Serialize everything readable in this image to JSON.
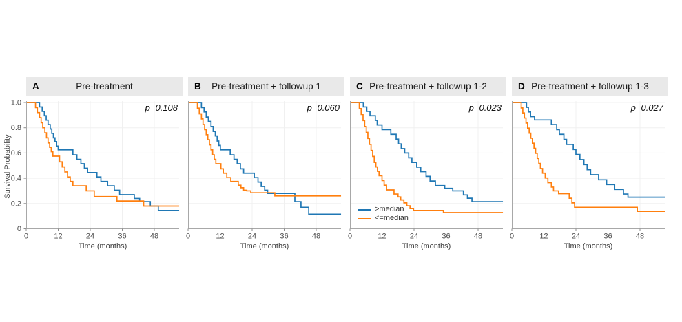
{
  "figure": {
    "y_axis_label": "Survival Probability",
    "x_axis_label": "Time (months)",
    "x_ticks": [
      0,
      12,
      24,
      36,
      48
    ],
    "y_ticks": [
      "1.0",
      "0.8",
      "0.6",
      "0.4",
      "0.2",
      "0"
    ],
    "x_max": 57.3,
    "colors": {
      "above_median": "#1f77b4",
      "below_median": "#ff7f0e",
      "strip_bg": "#e9e9e9",
      "grid": "#f0f0f0",
      "spine": "#a8a8a8",
      "tick": "#8c8c8c",
      "tick_text": "#4d4d4d"
    },
    "legend": {
      "items": [
        {
          "label": ">median",
          "color_key": "above_median"
        },
        {
          "label": "<=median",
          "color_key": "below_median"
        }
      ]
    },
    "panels": [
      {
        "letter": "A",
        "title": "Pre-treatment",
        "p_value": "p=0.108"
      },
      {
        "letter": "B",
        "title": "Pre-treatment + followup 1",
        "p_value": "p=0.060"
      },
      {
        "letter": "C",
        "title": "Pre-treatment + followup 1-2",
        "p_value": "p=0.023"
      },
      {
        "letter": "D",
        "title": "Pre-treatment + followup 1-3",
        "p_value": "p=0.027"
      }
    ]
  },
  "chart_data": [
    {
      "type": "line",
      "subtype": "kaplan-meier-step",
      "panel": "A",
      "title": "Pre-treatment",
      "p_value": "p=0.108",
      "xlabel": "Time (months)",
      "ylabel": "Survival Probability",
      "xlim": [
        0,
        57.3
      ],
      "ylim": [
        0,
        1.0
      ],
      "x_ticks": [
        0,
        12,
        24,
        36,
        48
      ],
      "grid": true,
      "legend_position": "none",
      "series": [
        {
          "name": ">median",
          "color_key": "above_median",
          "start_survival": 1.0,
          "steps": [
            [
              5,
              0.965
            ],
            [
              6,
              0.93
            ],
            [
              6.8,
              0.895
            ],
            [
              7.5,
              0.86
            ],
            [
              8.2,
              0.825
            ],
            [
              9,
              0.79
            ],
            [
              9.6,
              0.755
            ],
            [
              10.2,
              0.72
            ],
            [
              10.8,
              0.69
            ],
            [
              11.4,
              0.655
            ],
            [
              12,
              0.625
            ],
            [
              17.5,
              0.585
            ],
            [
              19,
              0.55
            ],
            [
              20.5,
              0.515
            ],
            [
              21.8,
              0.48
            ],
            [
              23,
              0.445
            ],
            [
              26.5,
              0.41
            ],
            [
              28,
              0.375
            ],
            [
              30.5,
              0.34
            ],
            [
              33,
              0.305
            ],
            [
              35,
              0.27
            ],
            [
              40.5,
              0.24
            ],
            [
              42.5,
              0.215
            ],
            [
              46.5,
              0.18
            ],
            [
              49.5,
              0.145
            ]
          ]
        },
        {
          "name": "<=median",
          "color_key": "below_median",
          "start_survival": 1.0,
          "steps": [
            [
              3.5,
              0.96
            ],
            [
              4.2,
              0.92
            ],
            [
              5,
              0.88
            ],
            [
              5.6,
              0.84
            ],
            [
              6.2,
              0.8
            ],
            [
              7,
              0.76
            ],
            [
              7.6,
              0.72
            ],
            [
              8.2,
              0.68
            ],
            [
              8.8,
              0.645
            ],
            [
              9.4,
              0.61
            ],
            [
              10,
              0.575
            ],
            [
              12.5,
              0.53
            ],
            [
              13.5,
              0.49
            ],
            [
              14.5,
              0.45
            ],
            [
              15.5,
              0.41
            ],
            [
              16.5,
              0.375
            ],
            [
              17.5,
              0.34
            ],
            [
              22.5,
              0.3
            ],
            [
              25.5,
              0.255
            ],
            [
              34,
              0.22
            ],
            [
              44,
              0.18
            ]
          ]
        }
      ]
    },
    {
      "type": "line",
      "subtype": "kaplan-meier-step",
      "panel": "B",
      "title": "Pre-treatment + followup 1",
      "p_value": "p=0.060",
      "xlabel": "Time (months)",
      "ylabel": "Survival Probability",
      "xlim": [
        0,
        57.3
      ],
      "ylim": [
        0,
        1.0
      ],
      "x_ticks": [
        0,
        12,
        24,
        36,
        48
      ],
      "grid": true,
      "legend_position": "none",
      "series": [
        {
          "name": ">median",
          "color_key": "above_median",
          "start_survival": 1.0,
          "steps": [
            [
              5,
              0.96
            ],
            [
              6,
              0.925
            ],
            [
              6.8,
              0.885
            ],
            [
              7.6,
              0.85
            ],
            [
              8.6,
              0.81
            ],
            [
              9.4,
              0.77
            ],
            [
              10.2,
              0.735
            ],
            [
              10.9,
              0.695
            ],
            [
              11.5,
              0.66
            ],
            [
              12.1,
              0.625
            ],
            [
              15.8,
              0.585
            ],
            [
              17.2,
              0.55
            ],
            [
              18.4,
              0.515
            ],
            [
              19.6,
              0.475
            ],
            [
              20.8,
              0.44
            ],
            [
              24.8,
              0.405
            ],
            [
              26.2,
              0.37
            ],
            [
              27.4,
              0.335
            ],
            [
              28.7,
              0.305
            ],
            [
              29.8,
              0.28
            ],
            [
              40,
              0.215
            ],
            [
              42.3,
              0.17
            ],
            [
              45.2,
              0.115
            ]
          ]
        },
        {
          "name": "<=median",
          "color_key": "below_median",
          "start_survival": 1.0,
          "steps": [
            [
              3.5,
              0.955
            ],
            [
              4.2,
              0.91
            ],
            [
              5,
              0.87
            ],
            [
              5.6,
              0.825
            ],
            [
              6.2,
              0.785
            ],
            [
              6.8,
              0.745
            ],
            [
              7.4,
              0.705
            ],
            [
              8,
              0.665
            ],
            [
              8.6,
              0.625
            ],
            [
              9.2,
              0.585
            ],
            [
              9.8,
              0.55
            ],
            [
              10.4,
              0.515
            ],
            [
              12.3,
              0.475
            ],
            [
              13.2,
              0.44
            ],
            [
              14.5,
              0.405
            ],
            [
              16,
              0.375
            ],
            [
              18.8,
              0.345
            ],
            [
              19.8,
              0.325
            ],
            [
              20.8,
              0.305
            ],
            [
              22,
              0.3
            ],
            [
              23.5,
              0.285
            ],
            [
              32.5,
              0.26
            ]
          ]
        }
      ]
    },
    {
      "type": "line",
      "subtype": "kaplan-meier-step",
      "panel": "C",
      "title": "Pre-treatment + followup 1-2",
      "p_value": "p=0.023",
      "xlabel": "Time (months)",
      "ylabel": "Survival Probability",
      "xlim": [
        0,
        57.3
      ],
      "ylim": [
        0,
        1.0
      ],
      "x_ticks": [
        0,
        12,
        24,
        36,
        48
      ],
      "grid": true,
      "legend_position": "bottom-left",
      "series": [
        {
          "name": ">median",
          "color_key": "above_median",
          "start_survival": 1.0,
          "steps": [
            [
              5,
              0.965
            ],
            [
              6.3,
              0.93
            ],
            [
              7.5,
              0.895
            ],
            [
              9.5,
              0.858
            ],
            [
              10.2,
              0.822
            ],
            [
              12,
              0.785
            ],
            [
              15.3,
              0.748
            ],
            [
              17.3,
              0.71
            ],
            [
              18.2,
              0.672
            ],
            [
              19.2,
              0.635
            ],
            [
              20.5,
              0.6
            ],
            [
              22,
              0.562
            ],
            [
              23.2,
              0.525
            ],
            [
              25,
              0.488
            ],
            [
              26.5,
              0.452
            ],
            [
              28.5,
              0.415
            ],
            [
              30,
              0.378
            ],
            [
              32,
              0.342
            ],
            [
              35.5,
              0.32
            ],
            [
              38.5,
              0.3
            ],
            [
              42.5,
              0.268
            ],
            [
              44,
              0.242
            ],
            [
              45.7,
              0.215
            ]
          ]
        },
        {
          "name": "<=median",
          "color_key": "below_median",
          "start_survival": 1.0,
          "steps": [
            [
              3.5,
              0.952
            ],
            [
              4.2,
              0.905
            ],
            [
              4.9,
              0.857
            ],
            [
              5.5,
              0.81
            ],
            [
              6.1,
              0.763
            ],
            [
              6.7,
              0.715
            ],
            [
              7.3,
              0.668
            ],
            [
              7.9,
              0.62
            ],
            [
              8.5,
              0.573
            ],
            [
              9.1,
              0.525
            ],
            [
              9.7,
              0.49
            ],
            [
              10.3,
              0.455
            ],
            [
              10.9,
              0.42
            ],
            [
              12,
              0.382
            ],
            [
              12.8,
              0.345
            ],
            [
              13.7,
              0.308
            ],
            [
              16.5,
              0.275
            ],
            [
              18,
              0.252
            ],
            [
              19,
              0.228
            ],
            [
              20.2,
              0.205
            ],
            [
              21.3,
              0.182
            ],
            [
              22.5,
              0.16
            ],
            [
              23.8,
              0.145
            ],
            [
              35,
              0.128
            ]
          ]
        }
      ]
    },
    {
      "type": "line",
      "subtype": "kaplan-meier-step",
      "panel": "D",
      "title": "Pre-treatment + followup 1-3",
      "p_value": "p=0.027",
      "xlabel": "Time (months)",
      "ylabel": "Survival Probability",
      "xlim": [
        0,
        57.3
      ],
      "ylim": [
        0,
        1.0
      ],
      "x_ticks": [
        0,
        12,
        24,
        36,
        48
      ],
      "grid": true,
      "legend_position": "none",
      "series": [
        {
          "name": ">median",
          "color_key": "above_median",
          "start_survival": 1.0,
          "steps": [
            [
              5.5,
              0.962
            ],
            [
              6.2,
              0.925
            ],
            [
              7,
              0.888
            ],
            [
              8.5,
              0.862
            ],
            [
              14.8,
              0.825
            ],
            [
              16.8,
              0.785
            ],
            [
              17.8,
              0.748
            ],
            [
              19.5,
              0.708
            ],
            [
              20.5,
              0.668
            ],
            [
              23,
              0.628
            ],
            [
              24,
              0.588
            ],
            [
              25.5,
              0.548
            ],
            [
              27,
              0.508
            ],
            [
              28.2,
              0.468
            ],
            [
              29.5,
              0.428
            ],
            [
              32.5,
              0.388
            ],
            [
              35.5,
              0.35
            ],
            [
              38.5,
              0.312
            ],
            [
              41.8,
              0.275
            ],
            [
              43.5,
              0.25
            ]
          ]
        },
        {
          "name": "<=median",
          "color_key": "below_median",
          "start_survival": 1.0,
          "steps": [
            [
              3.5,
              0.957
            ],
            [
              4.1,
              0.917
            ],
            [
              4.7,
              0.877
            ],
            [
              5.3,
              0.837
            ],
            [
              5.9,
              0.797
            ],
            [
              6.5,
              0.757
            ],
            [
              7.1,
              0.717
            ],
            [
              7.7,
              0.677
            ],
            [
              8.3,
              0.637
            ],
            [
              8.9,
              0.597
            ],
            [
              9.5,
              0.557
            ],
            [
              10.1,
              0.517
            ],
            [
              10.7,
              0.477
            ],
            [
              11.5,
              0.44
            ],
            [
              12.5,
              0.402
            ],
            [
              13.5,
              0.365
            ],
            [
              14.8,
              0.33
            ],
            [
              15.6,
              0.3
            ],
            [
              17.5,
              0.278
            ],
            [
              21.5,
              0.242
            ],
            [
              22.5,
              0.205
            ],
            [
              23.5,
              0.17
            ],
            [
              47,
              0.138
            ]
          ]
        }
      ]
    }
  ]
}
